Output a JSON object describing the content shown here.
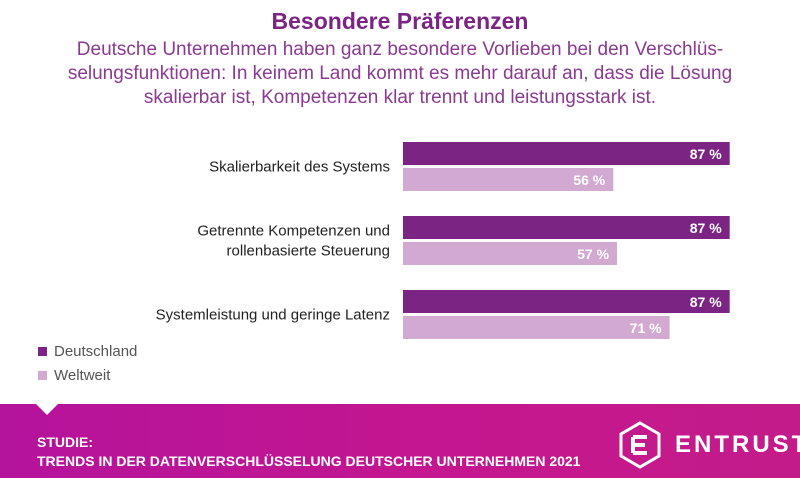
{
  "header": {
    "title": "Besondere Präferenzen",
    "subtitle_lines": [
      "Deutsche Unternehmen haben ganz besondere Vorlieben bei den Verschlüs-",
      "selungsfunktionen: In keinem Land kommt es mehr darauf an, dass die Lösung",
      "skalierbar ist, Kompetenzen klar trennt und leistungsstark ist."
    ]
  },
  "chart_data": {
    "type": "bar",
    "orientation": "horizontal",
    "categories": [
      [
        "Skalierbarkeit des Systems"
      ],
      [
        "Getrennte Kompetenzen und",
        "rollenbasierte Steuerung"
      ],
      [
        "Systemleistung und geringe Latenz"
      ]
    ],
    "series": [
      {
        "name": "Deutschland",
        "values": [
          87,
          87,
          87
        ],
        "color": "#7b2484"
      },
      {
        "name": "Weltweit",
        "values": [
          56,
          57,
          71
        ],
        "color": "#d2a9d1"
      }
    ],
    "value_suffix": " %",
    "xlim": [
      0,
      100
    ],
    "legend": "bottom-left"
  },
  "footer": {
    "line1": "STUDIE:",
    "line2": "TRENDS IN DER DATENVERSCHLÜSSELUNG DEUTSCHER UNTERNEHMEN 2021",
    "brand": "ENTRUST",
    "color": "#c0168f"
  }
}
